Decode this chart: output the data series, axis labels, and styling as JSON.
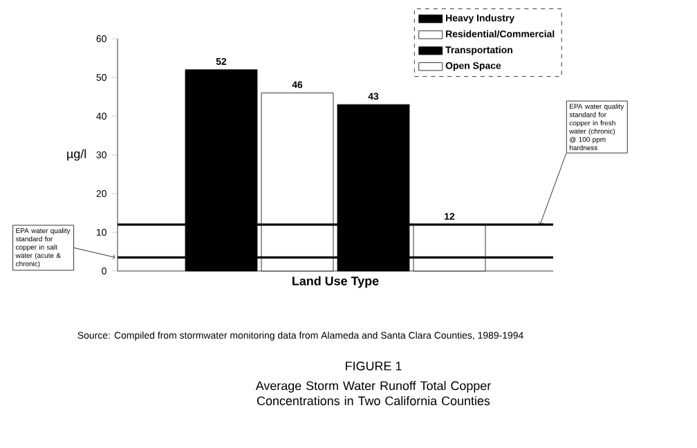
{
  "chart_data": {
    "type": "bar",
    "title": "FIGURE 1",
    "subtitle": "Average Storm Water Runoff Total Copper Concentrations in Two California Counties",
    "xlabel": "Land Use Type",
    "ylabel": "µg/l",
    "categories": [
      null
    ],
    "series": [
      {
        "name": "Heavy Industry",
        "color": "#000000",
        "values": [
          52
        ],
        "value_labels": [
          "52"
        ]
      },
      {
        "name": "Residential/Commercial",
        "color": "#ffffff",
        "values": [
          46
        ],
        "value_labels": [
          "46"
        ]
      },
      {
        "name": "Transportation",
        "color": "#000000",
        "values": [
          43
        ],
        "value_labels": [
          "43"
        ]
      },
      {
        "name": "Open Space",
        "color": "#ffffff",
        "values": [
          12
        ],
        "value_labels": [
          "12"
        ]
      }
    ],
    "ylim": [
      0,
      60
    ],
    "yticks": [
      0,
      10,
      20,
      30,
      40,
      50,
      60
    ],
    "ref_lines": [
      {
        "axis": "y",
        "value": 12,
        "label": "EPA water quality standard for copper in fresh water (chronic) @ 100 ppm hardness",
        "color": "#000000"
      },
      {
        "axis": "y",
        "value": 3.5,
        "label": "EPA water quality standard for copper in salt water (acute & chronic)",
        "color": "#000000"
      }
    ],
    "annotations": [
      "Source: Compiled from stormwater monitoring data from Alameda and Santa Clara Counties, 1989-1994"
    ],
    "legend": "top right",
    "grid": false
  }
}
